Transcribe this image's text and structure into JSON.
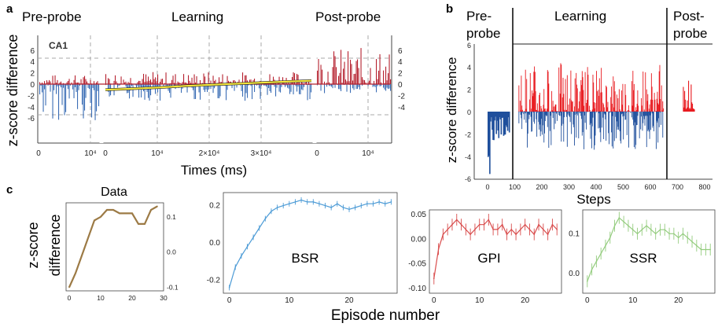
{
  "panel_labels": {
    "a": "a",
    "b": "b",
    "c": "c"
  },
  "panel_a": {
    "titles": {
      "pre": "Pre-probe",
      "learn": "Learning",
      "post": "Post-probe"
    },
    "region_label": "CA1",
    "ylabel": "z-score difference",
    "xlabel": "Times (ms)",
    "yticks_left": [
      "6",
      "4",
      "2",
      "0",
      "-2",
      "-4",
      "-6"
    ],
    "yticks_right": [
      "6",
      "4",
      "2",
      "0",
      "-2",
      "-4"
    ],
    "xticks": [
      "0",
      "10⁴",
      "0",
      "10⁴",
      "2×10⁴",
      "3×10⁴",
      "0",
      "10⁴"
    ]
  },
  "panel_b": {
    "titles": {
      "pre": "Pre-\nprobe",
      "learn": "Learning",
      "post": "Post-\nprobe"
    },
    "ylabel": "z-score difference",
    "xlabel": "Steps",
    "yticks": [
      "6",
      "4",
      "2",
      "0",
      "-2",
      "-4",
      "-6"
    ],
    "xticks": [
      "0",
      "100",
      "200",
      "300",
      "400",
      "500",
      "600",
      "700",
      "800"
    ]
  },
  "panel_c": {
    "ylabel_line1": "z-score",
    "ylabel_line2": "difference",
    "xlabel": "Episode number",
    "titles": {
      "data": "Data",
      "bsr": "BSR",
      "gpi": "GPI",
      "ssr": "SSR"
    },
    "data_yticks": [
      "0.1",
      "0.0",
      "-0.1"
    ],
    "data_xticks": [
      "0",
      "10",
      "20",
      "30"
    ],
    "bsr_yticks": [
      "0.2",
      "0.0",
      "-0.2"
    ],
    "bsr_xticks": [
      "0",
      "10",
      "20"
    ],
    "gpi_yticks": [
      "0.05",
      "0.00",
      "-0.05",
      "-0.10"
    ],
    "gpi_xticks": [
      "0",
      "10",
      "20"
    ],
    "ssr_yticks": [
      "0.1",
      "0.0"
    ],
    "ssr_xticks": [
      "0",
      "10",
      "20"
    ]
  },
  "colors": {
    "red": "#b5202e",
    "blue": "#3b6db5",
    "yellow": "#f5e63b",
    "gold": "#9c7a45",
    "bsr": "#4c9bd6",
    "gpi": "#d94c4c",
    "ssr": "#94cc7e",
    "bright_red": "#e8191e"
  },
  "chart_data": [
    {
      "type": "bar",
      "panel": "a",
      "ylim": [
        -7,
        7
      ],
      "segments": [
        {
          "name": "Pre-probe",
          "x": [
            0,
            15000
          ],
          "pos_peak": 2.0,
          "neg_peak": -6.5
        },
        {
          "name": "Learning",
          "x": [
            0,
            38000
          ],
          "pos_peak": 2.5,
          "neg_peak": -3.5
        },
        {
          "name": "Post-probe",
          "x": [
            0,
            15000
          ],
          "pos_peak": 6.0,
          "neg_peak": -2.0
        }
      ],
      "trend": {
        "x": [
          0,
          5000,
          10000,
          15000,
          20000,
          25000,
          30000,
          35000,
          38000
        ],
        "y": [
          -1.0,
          -0.8,
          -0.6,
          -0.3,
          -0.1,
          0.1,
          0.3,
          0.5,
          0.6
        ]
      },
      "reference_lines": [
        4.5,
        -4.0
      ]
    },
    {
      "type": "bar",
      "panel": "b",
      "ylim": [
        -6,
        6
      ],
      "xlim": [
        -20,
        800
      ],
      "segments": [
        {
          "name": "Pre-probe",
          "x": [
            0,
            80
          ],
          "neg_peak": -6.0
        },
        {
          "name": "Learning",
          "x": [
            110,
            650
          ],
          "pos_peak": 4.5,
          "neg_peak": -3.5
        },
        {
          "name": "Post-probe",
          "x": [
            720,
            760
          ],
          "pos_peak": 4.5
        }
      ]
    },
    {
      "type": "line",
      "panel": "c-data",
      "x": [
        0,
        2,
        4,
        6,
        8,
        10,
        12,
        14,
        16,
        18,
        20,
        22,
        24,
        26,
        28
      ],
      "y": [
        -0.1,
        -0.06,
        -0.01,
        0.04,
        0.09,
        0.1,
        0.12,
        0.12,
        0.11,
        0.11,
        0.11,
        0.08,
        0.08,
        0.12,
        0.13
      ],
      "xlim": [
        -1,
        30
      ],
      "ylim": [
        -0.11,
        0.14
      ]
    },
    {
      "type": "line",
      "panel": "c-bsr",
      "x": [
        0,
        1,
        2,
        3,
        4,
        5,
        6,
        7,
        8,
        9,
        10,
        11,
        12,
        13,
        14,
        15,
        16,
        17,
        18,
        19,
        20,
        21,
        22,
        23,
        24,
        25,
        26,
        27
      ],
      "y": [
        -0.24,
        -0.13,
        -0.07,
        -0.02,
        0.03,
        0.08,
        0.13,
        0.17,
        0.19,
        0.2,
        0.21,
        0.22,
        0.23,
        0.22,
        0.22,
        0.21,
        0.2,
        0.19,
        0.21,
        0.19,
        0.18,
        0.19,
        0.2,
        0.21,
        0.21,
        0.22,
        0.21,
        0.22
      ],
      "xlim": [
        -1,
        28
      ],
      "ylim": [
        -0.27,
        0.27
      ]
    },
    {
      "type": "line",
      "panel": "c-gpi",
      "x": [
        0,
        1,
        2,
        3,
        4,
        5,
        6,
        7,
        8,
        9,
        10,
        11,
        12,
        13,
        14,
        15,
        16,
        17,
        18,
        19,
        20,
        21,
        22,
        23,
        24,
        25,
        26,
        27
      ],
      "y": [
        -0.08,
        -0.02,
        0.01,
        0.02,
        0.03,
        0.04,
        0.03,
        0.02,
        0.01,
        0.02,
        0.03,
        0.03,
        0.04,
        0.02,
        0.02,
        0.03,
        0.01,
        0.02,
        0.01,
        0.02,
        0.03,
        0.02,
        0.01,
        0.03,
        0.02,
        0.01,
        0.03,
        0.02
      ],
      "xlim": [
        -1,
        28
      ],
      "ylim": [
        -0.11,
        0.06
      ]
    },
    {
      "type": "line",
      "panel": "c-ssr",
      "x": [
        0,
        1,
        2,
        3,
        4,
        5,
        6,
        7,
        8,
        9,
        10,
        11,
        12,
        13,
        14,
        15,
        16,
        17,
        18,
        19,
        20,
        21,
        22,
        23,
        24,
        25,
        26,
        27
      ],
      "y": [
        -0.02,
        0.01,
        0.03,
        0.05,
        0.07,
        0.09,
        0.12,
        0.14,
        0.13,
        0.12,
        0.11,
        0.1,
        0.11,
        0.12,
        0.11,
        0.1,
        0.11,
        0.11,
        0.1,
        0.1,
        0.09,
        0.1,
        0.09,
        0.08,
        0.07,
        0.06,
        0.06,
        0.06
      ],
      "xlim": [
        -1,
        28
      ],
      "ylim": [
        -0.05,
        0.16
      ]
    }
  ]
}
